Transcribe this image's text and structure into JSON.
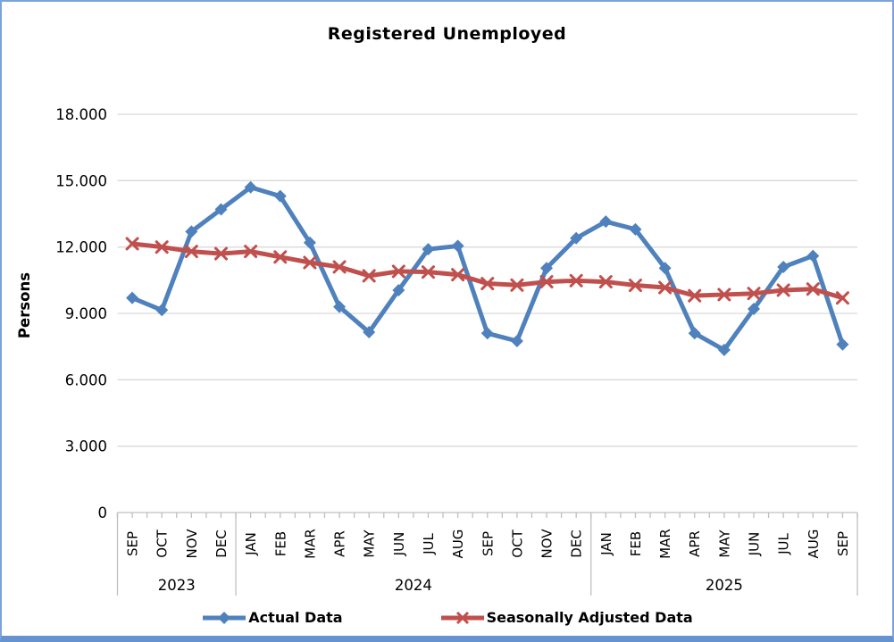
{
  "chart_data": {
    "type": "line",
    "title": "Registered Unemployed",
    "ylabel": "Persons",
    "ylim": [
      0,
      18000
    ],
    "grid": true,
    "legend_position": "bottom",
    "yticks": [
      {
        "value": 0,
        "label": "0"
      },
      {
        "value": 3000,
        "label": "3.000"
      },
      {
        "value": 6000,
        "label": "6.000"
      },
      {
        "value": 9000,
        "label": "9.000"
      },
      {
        "value": 12000,
        "label": "12.000"
      },
      {
        "value": 15000,
        "label": "15.000"
      },
      {
        "value": 18000,
        "label": "18.000"
      }
    ],
    "x_groups": [
      {
        "year": "2023",
        "months": [
          "SEP",
          "OCT",
          "NOV",
          "DEC"
        ]
      },
      {
        "year": "2024",
        "months": [
          "JAN",
          "FEB",
          "MAR",
          "APR",
          "MAY",
          "JUN",
          "JUL",
          "AUG",
          "SEP",
          "OCT",
          "NOV",
          "DEC"
        ]
      },
      {
        "year": "2025",
        "months": [
          "JAN",
          "FEB",
          "MAR",
          "APR",
          "MAY",
          "JUN",
          "JUL",
          "AUG",
          "SEP"
        ]
      }
    ],
    "series": [
      {
        "name": "Actual Data",
        "color": "#4F81BD",
        "marker": "diamond",
        "values": [
          9700,
          9150,
          12700,
          13700,
          14700,
          14300,
          12200,
          9300,
          8150,
          10050,
          11900,
          12050,
          8100,
          7750,
          11050,
          12400,
          13150,
          12800,
          11050,
          8100,
          7350,
          9200,
          11100,
          11600,
          7600
        ]
      },
      {
        "name": "Seasonally Adjusted Data",
        "color": "#C0504D",
        "marker": "x",
        "values": [
          12150,
          12000,
          11800,
          11700,
          11800,
          11550,
          11300,
          11100,
          10700,
          10900,
          10870,
          10750,
          10350,
          10280,
          10430,
          10480,
          10430,
          10270,
          10170,
          9800,
          9850,
          9900,
          10050,
          10100,
          9700
        ]
      }
    ]
  },
  "colors": {
    "frame_border": "#7ba3da",
    "gridline": "#d9d9d9",
    "axis": "#bfbfbf",
    "text": "#000000"
  }
}
